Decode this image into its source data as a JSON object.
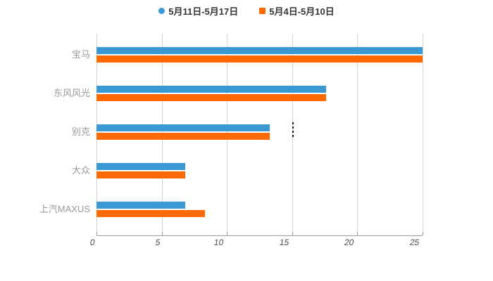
{
  "chart_data": {
    "type": "bar",
    "orientation": "horizontal",
    "title": "",
    "xlabel": "",
    "ylabel": "",
    "categories": [
      "宝马",
      "东风风光",
      "别克",
      "大众",
      "上汽MAXUS"
    ],
    "series": [
      {
        "name": "5月11日-5月17日",
        "marker": "circle",
        "color": "#3a99d2",
        "values": [
          25,
          17.6,
          13.3,
          6.8,
          6.8
        ]
      },
      {
        "name": "5月4日-5月10日",
        "marker": "square",
        "color": "#ff6a00",
        "values": [
          25,
          17.6,
          13.3,
          6.8,
          8.3
        ]
      }
    ],
    "xlim": [
      0,
      25
    ],
    "x_ticks": [
      "0",
      "5",
      "10",
      "15",
      "20",
      "25"
    ],
    "grid": true,
    "legend_position": "top-center"
  },
  "colors": {
    "series1": "#3a99d2",
    "series2": "#ff6a00",
    "gridline": "#d4d4d4",
    "axis_line": "#999999",
    "tick_label": "#4a4a4a",
    "category_label": "#999999",
    "legend_text": "#333333",
    "background": "#ffffff"
  }
}
